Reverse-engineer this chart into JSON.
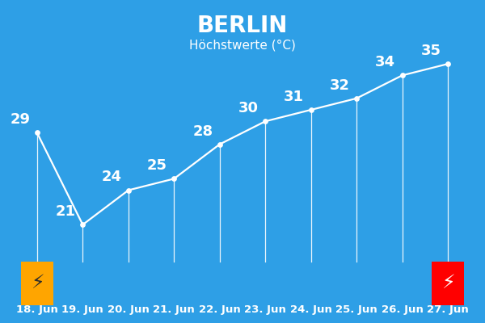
{
  "title": "BERLIN",
  "subtitle": "Höchstwerte (°C)",
  "background_color": "#2E9FE6",
  "dates": [
    "18. Jun",
    "19. Jun",
    "20. Jun",
    "21. Jun",
    "22. Jun",
    "23. Jun",
    "24. Jun",
    "25. Jun",
    "26. Jun",
    "27. Jun"
  ],
  "values": [
    29,
    21,
    24,
    25,
    28,
    30,
    31,
    32,
    34,
    35
  ],
  "line_color": "#FFFFFF",
  "label_color": "#FFFFFF",
  "vline_color": "#FFFFFF",
  "title_fontsize": 20,
  "subtitle_fontsize": 11,
  "value_fontsize": 13,
  "date_fontsize": 9.5,
  "warning_boxes": [
    {
      "index": 0,
      "color": "#FFA500",
      "symbol_color": "#2D2D2D"
    },
    {
      "index": 9,
      "color": "#FF0000",
      "symbol_color": "#FFFFFF"
    }
  ]
}
